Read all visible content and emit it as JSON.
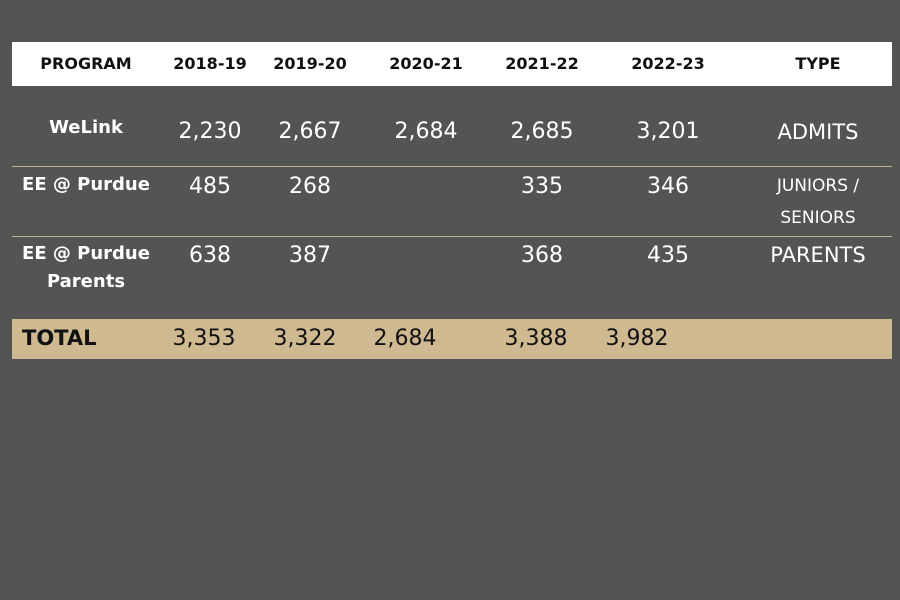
{
  "chart_data": {
    "type": "table",
    "columns": [
      "PROGRAM",
      "2018-19",
      "2019-20",
      "2020-21",
      "2021-22",
      "2022-23",
      "TYPE"
    ],
    "rows": [
      {
        "program_lines": [
          "WeLink"
        ],
        "values": [
          "2,230",
          "2,667",
          "2,684",
          "2,685",
          "3,201"
        ],
        "type_lines": [
          "ADMITS"
        ]
      },
      {
        "program_lines": [
          "EE @ Purdue"
        ],
        "values": [
          "485",
          "268",
          "",
          "335",
          "346"
        ],
        "type_lines": [
          "JUNIORS /",
          "SENIORS"
        ]
      },
      {
        "program_lines": [
          "EE @ Purdue",
          "Parents"
        ],
        "values": [
          "638",
          "387",
          "",
          "368",
          "435"
        ],
        "type_lines": [
          "PARENTS"
        ]
      }
    ],
    "total": {
      "label": "TOTAL",
      "values": [
        "3,353",
        "3,322",
        "2,684",
        "3,388",
        "3,982"
      ]
    },
    "colors": {
      "background": "#545454",
      "header": "#ffffff",
      "total": "#cfb991",
      "divider": "#bfb28f"
    }
  }
}
